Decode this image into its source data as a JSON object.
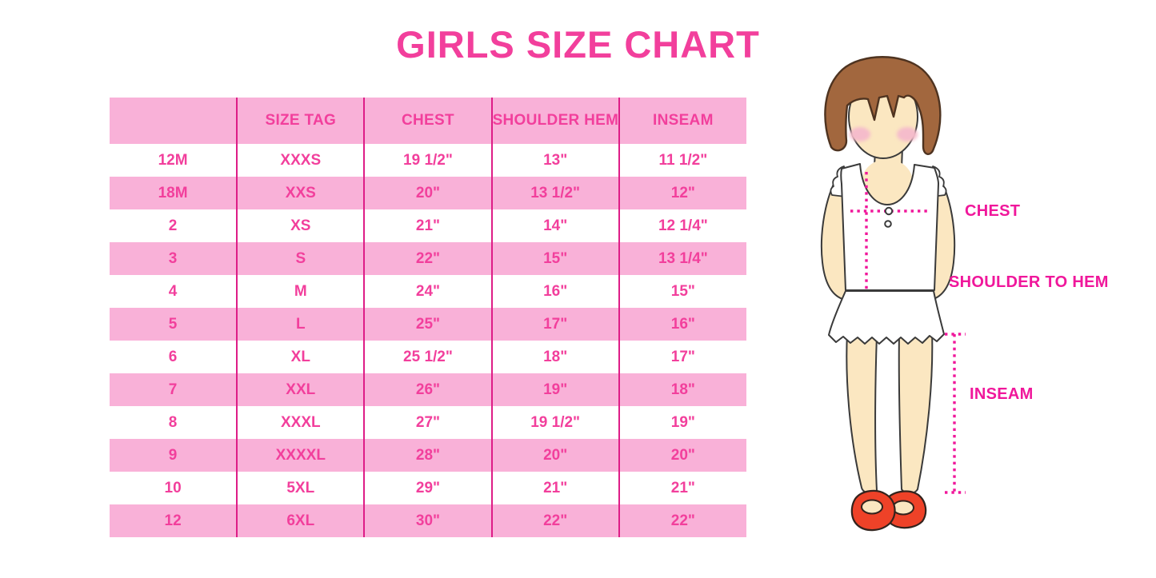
{
  "page": {
    "title": "GIRLS SIZE CHART"
  },
  "chart_data": {
    "type": "table",
    "title": "GIRLS SIZE CHART",
    "columns": [
      "",
      "SIZE TAG",
      "CHEST",
      "SHOULDER HEM",
      "INSEAM"
    ],
    "rows": [
      [
        "12M",
        "XXXS",
        "19 1/2\"",
        "13\"",
        "11 1/2\""
      ],
      [
        "18M",
        "XXS",
        "20\"",
        "13 1/2\"",
        "12\""
      ],
      [
        "2",
        "XS",
        "21\"",
        "14\"",
        "12 1/4\""
      ],
      [
        "3",
        "S",
        "22\"",
        "15\"",
        "13 1/4\""
      ],
      [
        "4",
        "M",
        "24\"",
        "16\"",
        "15\""
      ],
      [
        "5",
        "L",
        "25\"",
        "17\"",
        "16\""
      ],
      [
        "6",
        "XL",
        "25 1/2\"",
        "18\"",
        "17\""
      ],
      [
        "7",
        "XXL",
        "26\"",
        "19\"",
        "18\""
      ],
      [
        "8",
        "XXXL",
        "27\"",
        "19 1/2\"",
        "19\""
      ],
      [
        "9",
        "XXXXL",
        "28\"",
        "20\"",
        "20\""
      ],
      [
        "10",
        "5XL",
        "29\"",
        "21\"",
        "21\""
      ],
      [
        "12",
        "6XL",
        "30\"",
        "22\"",
        "22\""
      ]
    ],
    "row_stripe_pattern": "white and pink alternating, header pink",
    "legend_position": "none",
    "grid": "vertical dividers only"
  },
  "figure": {
    "description": "illustration of girl used as measurement guide",
    "labels": {
      "chest": "CHEST",
      "shoulder_to_hem": "SHOULDER TO HEM",
      "inseam": "INSEAM"
    }
  },
  "colors": {
    "title_pink": "#F23F9C",
    "row_pink": "#F9B1D8",
    "divider_pink": "#DE1D87",
    "measure_magenta": "#F0179B",
    "hair_brown": "#A2673E",
    "skin": "#FBE7C1",
    "blush": "#F5BCCB",
    "shoe_red": "#EE4228"
  }
}
